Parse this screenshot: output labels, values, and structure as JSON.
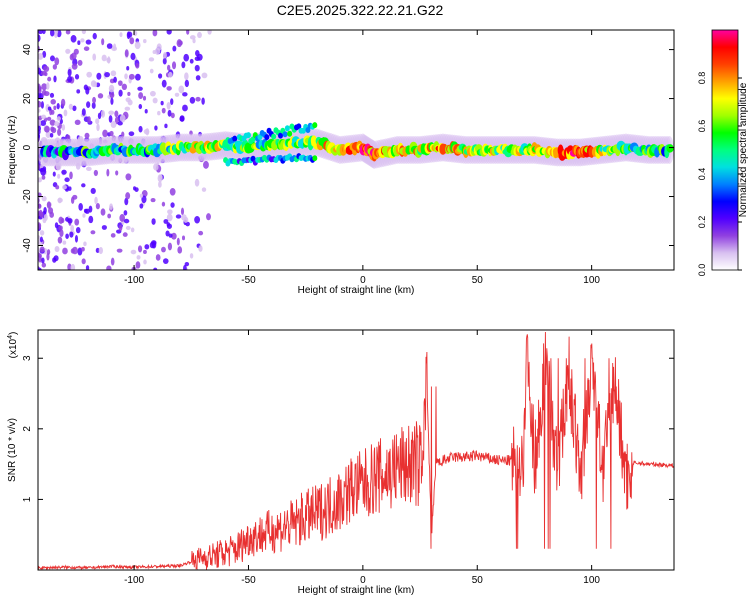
{
  "title": "C2E5.2025.322.22.21.G22",
  "chart_data": [
    {
      "type": "heatmap",
      "xlabel": "Height of straight line (km)",
      "ylabel": "Frequency (Hz)",
      "xlim": [
        -142,
        136
      ],
      "ylim": [
        -50,
        48
      ],
      "xticks": [
        -100,
        -50,
        0,
        50,
        100
      ],
      "yticks": [
        -40,
        -20,
        0,
        20,
        40
      ],
      "colorbar": {
        "label": "Normalized spectral amplitude",
        "range": [
          0,
          1
        ],
        "ticks": [
          0.0,
          0.2,
          0.4,
          0.6,
          0.8
        ],
        "colors": [
          "#ffffff",
          "#d8c0f0",
          "#9040e0",
          "#5000ff",
          "#0000ff",
          "#0080ff",
          "#00e0e0",
          "#00ff80",
          "#00ff00",
          "#a0ff00",
          "#ffff00",
          "#ffa000",
          "#ff4000",
          "#ff0000",
          "#ff00a0"
        ]
      },
      "ridge": [
        {
          "x": -140,
          "f": -2,
          "amp": 0.35
        },
        {
          "x": -130,
          "f": -2,
          "amp": 0.4
        },
        {
          "x": -120,
          "f": -2,
          "amp": 0.45
        },
        {
          "x": -110,
          "f": -1,
          "amp": 0.5
        },
        {
          "x": -100,
          "f": -1,
          "amp": 0.45
        },
        {
          "x": -90,
          "f": -1,
          "amp": 0.5
        },
        {
          "x": -80,
          "f": 0,
          "amp": 0.55
        },
        {
          "x": -70,
          "f": 0,
          "amp": 0.7
        },
        {
          "x": -60,
          "f": 1,
          "amp": 0.6
        },
        {
          "x": -50,
          "f": 0,
          "amp": 0.55
        },
        {
          "x": -40,
          "f": 1,
          "amp": 0.55
        },
        {
          "x": -30,
          "f": 2,
          "amp": 0.6
        },
        {
          "x": -20,
          "f": 2,
          "amp": 0.6
        },
        {
          "x": -10,
          "f": -1,
          "amp": 0.75
        },
        {
          "x": 0,
          "f": 0,
          "amp": 0.85
        },
        {
          "x": 5,
          "f": -3,
          "amp": 0.8
        },
        {
          "x": 15,
          "f": -1,
          "amp": 0.7
        },
        {
          "x": 25,
          "f": -1,
          "amp": 0.7
        },
        {
          "x": 35,
          "f": 0,
          "amp": 0.75
        },
        {
          "x": 45,
          "f": -1,
          "amp": 0.65
        },
        {
          "x": 55,
          "f": -1,
          "amp": 0.6
        },
        {
          "x": 65,
          "f": -1,
          "amp": 0.6
        },
        {
          "x": 75,
          "f": -1,
          "amp": 0.65
        },
        {
          "x": 85,
          "f": -2,
          "amp": 0.85
        },
        {
          "x": 95,
          "f": -2,
          "amp": 0.85
        },
        {
          "x": 105,
          "f": -1,
          "amp": 0.6
        },
        {
          "x": 115,
          "f": 0,
          "amp": 0.55
        },
        {
          "x": 125,
          "f": -1,
          "amp": 0.5
        },
        {
          "x": 135,
          "f": -1,
          "amp": 0.45
        }
      ]
    },
    {
      "type": "line",
      "xlabel": "Height of straight line (km)",
      "ylabel": "SNR (10 * v/v)",
      "yscale_label": "(x10",
      "yscale_exp": "4",
      "yscale_close": ")",
      "xlim": [
        -142,
        136
      ],
      "ylim": [
        0,
        3.4
      ],
      "xticks": [
        -100,
        -50,
        0,
        50,
        100
      ],
      "yticks": [
        1,
        2,
        3
      ],
      "color": "#e83030",
      "x": [
        -142,
        -130,
        -120,
        -110,
        -100,
        -90,
        -80,
        -75,
        -70,
        -65,
        -60,
        -55,
        -50,
        -45,
        -40,
        -35,
        -30,
        -25,
        -20,
        -15,
        -10,
        -5,
        0,
        5,
        10,
        15,
        20,
        25,
        28,
        30,
        32,
        35,
        40,
        45,
        50,
        55,
        60,
        65,
        70,
        72,
        75,
        80,
        85,
        90,
        95,
        100,
        105,
        110,
        115,
        118,
        125,
        136
      ],
      "values": [
        0.03,
        0.04,
        0.03,
        0.05,
        0.04,
        0.05,
        0.06,
        0.12,
        0.18,
        0.2,
        0.25,
        0.3,
        0.45,
        0.5,
        0.55,
        0.6,
        0.65,
        0.75,
        0.8,
        0.9,
        1.0,
        1.15,
        1.2,
        1.3,
        1.35,
        1.45,
        1.5,
        1.5,
        2.6,
        0.5,
        1.5,
        1.55,
        1.6,
        1.6,
        1.62,
        1.58,
        1.55,
        1.55,
        1.55,
        3.2,
        1.5,
        3.0,
        1.4,
        2.8,
        1.3,
        2.9,
        1.4,
        2.7,
        1.3,
        1.52,
        1.5,
        1.48
      ]
    }
  ]
}
